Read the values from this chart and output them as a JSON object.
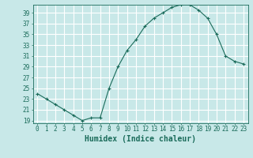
{
  "title": "",
  "xlabel": "Humidex (Indice chaleur)",
  "ylabel": "",
  "x": [
    0,
    1,
    2,
    3,
    4,
    5,
    6,
    7,
    8,
    9,
    10,
    11,
    12,
    13,
    14,
    15,
    16,
    17,
    18,
    19,
    20,
    21,
    22,
    23
  ],
  "y": [
    24,
    23,
    22,
    21,
    20,
    19,
    19.5,
    19.5,
    25,
    29,
    32,
    34,
    36.5,
    38,
    39,
    40,
    40.5,
    40.5,
    39.5,
    38,
    35,
    31,
    30,
    29.5
  ],
  "line_color": "#1a6b5a",
  "marker": "+",
  "marker_size": 3,
  "bg_color": "#c8e8e8",
  "grid_color": "#aacccc",
  "tick_color": "#1a6b5a",
  "label_color": "#1a6b5a",
  "ylim": [
    18.5,
    40.5
  ],
  "yticks": [
    19,
    21,
    23,
    25,
    27,
    29,
    31,
    33,
    35,
    37,
    39
  ],
  "xlim": [
    -0.5,
    23.5
  ],
  "xticks": [
    0,
    1,
    2,
    3,
    4,
    5,
    6,
    7,
    8,
    9,
    10,
    11,
    12,
    13,
    14,
    15,
    16,
    17,
    18,
    19,
    20,
    21,
    22,
    23
  ],
  "tick_fontsize": 5.5,
  "label_fontsize": 7.0
}
